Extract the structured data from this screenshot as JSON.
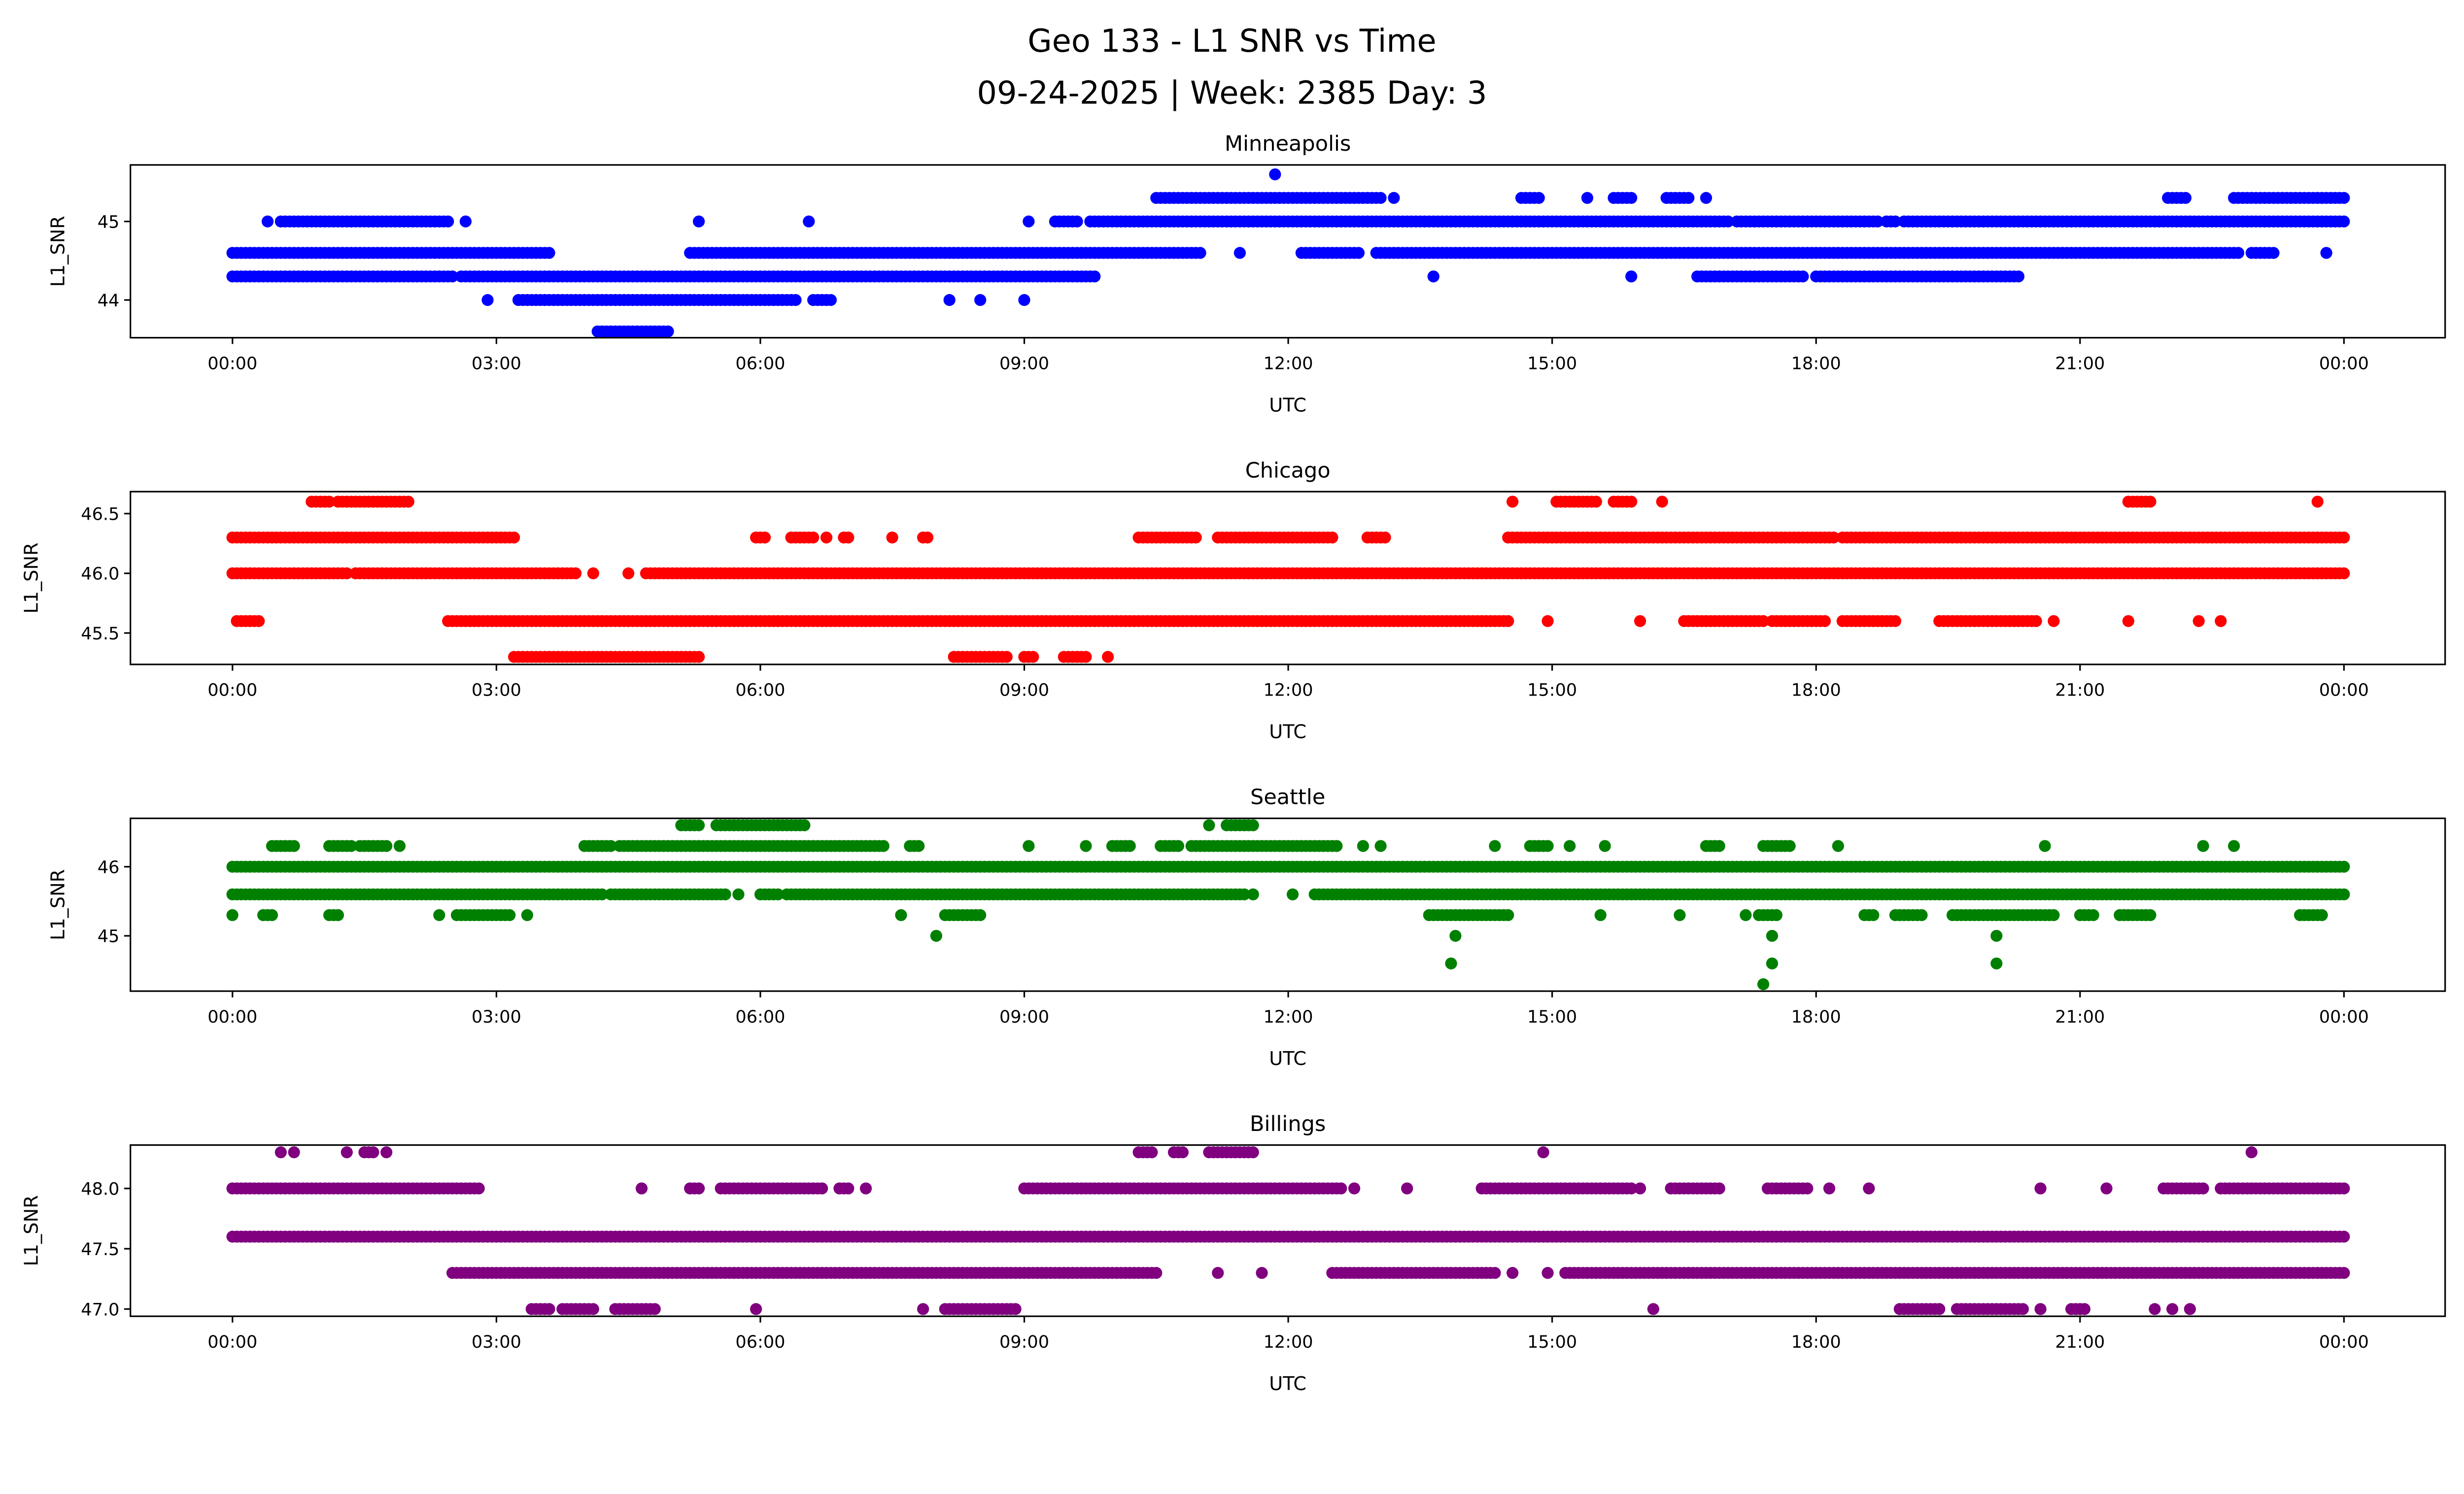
{
  "title_line1": "Geo 133 - L1 SNR vs Time",
  "title_line2": "09-24-2025 | Week: 2385 Day: 3",
  "chart_data": [
    {
      "type": "scatter",
      "title": "Minneapolis",
      "xlabel": "UTC",
      "ylabel": "L1_SNR",
      "color": "#0000ff",
      "xlim_hours": [
        -1.16,
        25.15
      ],
      "ylim": [
        43.52,
        45.72
      ],
      "xticks": [
        "00:00",
        "03:00",
        "06:00",
        "09:00",
        "12:00",
        "15:00",
        "18:00",
        "21:00",
        "00:00"
      ],
      "yticks": [
        {
          "v": 44,
          "label": "44"
        },
        {
          "v": 45,
          "label": "45"
        }
      ],
      "levels": [
        {
          "y": 45.6,
          "ranges": [
            [
              11.85,
              11.85
            ]
          ]
        },
        {
          "y": 45.3,
          "ranges": [
            [
              10.5,
              13.05
            ],
            [
              13.2,
              13.2
            ],
            [
              14.65,
              14.85
            ],
            [
              15.4,
              15.4
            ],
            [
              15.7,
              15.9
            ],
            [
              16.3,
              16.55
            ],
            [
              16.75,
              16.75
            ],
            [
              22.0,
              22.2
            ],
            [
              22.75,
              24.0
            ]
          ]
        },
        {
          "y": 45.0,
          "ranges": [
            [
              0.4,
              0.4
            ],
            [
              0.55,
              2.45
            ],
            [
              2.65,
              2.65
            ],
            [
              5.3,
              5.3
            ],
            [
              6.55,
              6.55
            ],
            [
              9.05,
              9.05
            ],
            [
              9.35,
              9.6
            ],
            [
              9.75,
              17.0
            ],
            [
              17.1,
              18.7
            ],
            [
              18.8,
              18.9
            ],
            [
              19.0,
              24.0
            ]
          ]
        },
        {
          "y": 44.6,
          "ranges": [
            [
              0,
              3.6
            ],
            [
              5.2,
              11.0
            ],
            [
              11.45,
              11.45
            ],
            [
              12.15,
              12.8
            ],
            [
              13.0,
              22.8
            ],
            [
              22.95,
              23.2
            ],
            [
              23.8,
              23.8
            ]
          ]
        },
        {
          "y": 44.3,
          "ranges": [
            [
              0,
              2.5
            ],
            [
              2.6,
              9.8
            ],
            [
              13.65,
              13.65
            ],
            [
              15.9,
              15.9
            ],
            [
              16.65,
              17.85
            ],
            [
              18.0,
              20.3
            ]
          ]
        },
        {
          "y": 44.0,
          "ranges": [
            [
              2.9,
              2.9
            ],
            [
              3.25,
              6.4
            ],
            [
              6.6,
              6.8
            ],
            [
              8.15,
              8.15
            ],
            [
              8.5,
              8.5
            ],
            [
              9.0,
              9.0
            ]
          ]
        },
        {
          "y": 43.6,
          "ranges": [
            [
              4.15,
              4.95
            ]
          ]
        }
      ]
    },
    {
      "type": "scatter",
      "title": "Chicago",
      "xlabel": "UTC",
      "ylabel": "L1_SNR",
      "color": "#ff0000",
      "xlim_hours": [
        -1.16,
        25.15
      ],
      "ylim": [
        45.237,
        46.684
      ],
      "xticks": [
        "00:00",
        "03:00",
        "06:00",
        "09:00",
        "12:00",
        "15:00",
        "18:00",
        "21:00",
        "00:00"
      ],
      "yticks": [
        {
          "v": 45.5,
          "label": "45.5"
        },
        {
          "v": 46.0,
          "label": "46.0"
        },
        {
          "v": 46.5,
          "label": "46.5"
        }
      ],
      "levels": [
        {
          "y": 46.6,
          "ranges": [
            [
              0.9,
              1.1
            ],
            [
              1.2,
              2.0
            ],
            [
              14.55,
              14.55
            ],
            [
              15.05,
              15.5
            ],
            [
              15.7,
              15.9
            ],
            [
              16.25,
              16.25
            ],
            [
              21.55,
              21.8
            ],
            [
              23.7,
              23.7
            ]
          ]
        },
        {
          "y": 46.3,
          "ranges": [
            [
              0,
              3.2
            ],
            [
              5.95,
              6.05
            ],
            [
              6.35,
              6.6
            ],
            [
              6.75,
              6.75
            ],
            [
              6.95,
              7.0
            ],
            [
              7.5,
              7.5
            ],
            [
              7.85,
              7.9
            ],
            [
              10.3,
              10.95
            ],
            [
              11.2,
              12.5
            ],
            [
              12.9,
              13.1
            ],
            [
              14.5,
              18.2
            ],
            [
              18.3,
              24.0
            ]
          ]
        },
        {
          "y": 46.0,
          "ranges": [
            [
              0,
              1.3
            ],
            [
              1.4,
              3.9
            ],
            [
              4.1,
              4.1
            ],
            [
              4.5,
              4.5
            ],
            [
              4.7,
              24.0
            ]
          ]
        },
        {
          "y": 45.6,
          "ranges": [
            [
              0.05,
              0.3
            ],
            [
              2.45,
              14.5
            ],
            [
              14.95,
              14.95
            ],
            [
              16.0,
              16.0
            ],
            [
              16.5,
              17.4
            ],
            [
              17.5,
              18.1
            ],
            [
              18.3,
              18.9
            ],
            [
              19.4,
              20.5
            ],
            [
              20.7,
              20.7
            ],
            [
              21.55,
              21.55
            ],
            [
              22.35,
              22.35
            ],
            [
              22.6,
              22.6
            ]
          ]
        },
        {
          "y": 45.3,
          "ranges": [
            [
              3.2,
              5.3
            ],
            [
              8.2,
              8.8
            ],
            [
              9.0,
              9.1
            ],
            [
              9.45,
              9.7
            ],
            [
              9.95,
              9.95
            ]
          ]
        }
      ]
    },
    {
      "type": "scatter",
      "title": "Seattle",
      "xlabel": "UTC",
      "ylabel": "L1_SNR",
      "color": "#008000",
      "xlim_hours": [
        -1.16,
        25.15
      ],
      "ylim": [
        44.2,
        46.7
      ],
      "xticks": [
        "00:00",
        "03:00",
        "06:00",
        "09:00",
        "12:00",
        "15:00",
        "18:00",
        "21:00",
        "00:00"
      ],
      "yticks": [
        {
          "v": 45,
          "label": "45"
        },
        {
          "v": 46,
          "label": "46"
        }
      ],
      "levels": [
        {
          "y": 46.6,
          "ranges": [
            [
              5.1,
              5.3
            ],
            [
              5.5,
              6.5
            ],
            [
              11.1,
              11.1
            ],
            [
              11.3,
              11.6
            ]
          ]
        },
        {
          "y": 46.3,
          "ranges": [
            [
              0.45,
              0.7
            ],
            [
              1.1,
              1.35
            ],
            [
              1.45,
              1.75
            ],
            [
              1.9,
              1.9
            ],
            [
              4.0,
              4.3
            ],
            [
              4.4,
              7.4
            ],
            [
              7.7,
              7.8
            ],
            [
              9.05,
              9.05
            ],
            [
              9.7,
              9.7
            ],
            [
              10.0,
              10.2
            ],
            [
              10.55,
              10.75
            ],
            [
              10.9,
              12.55
            ],
            [
              12.85,
              12.85
            ],
            [
              13.05,
              13.05
            ],
            [
              14.35,
              14.35
            ],
            [
              14.75,
              14.95
            ],
            [
              15.2,
              15.2
            ],
            [
              15.6,
              15.6
            ],
            [
              16.75,
              16.9
            ],
            [
              17.4,
              17.7
            ],
            [
              18.25,
              18.25
            ],
            [
              20.6,
              20.6
            ],
            [
              22.4,
              22.4
            ],
            [
              22.75,
              22.75
            ]
          ]
        },
        {
          "y": 46.0,
          "ranges": [
            [
              0,
              24.0
            ]
          ]
        },
        {
          "y": 45.6,
          "ranges": [
            [
              0,
              4.2
            ],
            [
              4.3,
              5.6
            ],
            [
              5.75,
              5.75
            ],
            [
              6.0,
              6.2
            ],
            [
              6.3,
              11.5
            ],
            [
              11.6,
              11.6
            ],
            [
              12.05,
              12.05
            ],
            [
              12.3,
              24.0
            ]
          ]
        },
        {
          "y": 45.3,
          "ranges": [
            [
              0,
              0
            ],
            [
              0.35,
              0.45
            ],
            [
              1.1,
              1.2
            ],
            [
              2.35,
              2.35
            ],
            [
              2.55,
              3.15
            ],
            [
              3.35,
              3.35
            ],
            [
              7.6,
              7.6
            ],
            [
              8.1,
              8.5
            ],
            [
              13.6,
              14.5
            ],
            [
              15.55,
              15.55
            ],
            [
              16.45,
              16.45
            ],
            [
              17.2,
              17.2
            ],
            [
              17.35,
              17.55
            ],
            [
              18.55,
              18.65
            ],
            [
              18.9,
              19.2
            ],
            [
              19.55,
              20.7
            ],
            [
              21.0,
              21.15
            ],
            [
              21.45,
              21.8
            ],
            [
              23.5,
              23.75
            ]
          ]
        },
        {
          "y": 45.0,
          "ranges": [
            [
              8.0,
              8.0
            ],
            [
              13.9,
              13.9
            ],
            [
              17.5,
              17.5
            ],
            [
              20.05,
              20.05
            ]
          ]
        },
        {
          "y": 44.6,
          "ranges": [
            [
              13.85,
              13.85
            ],
            [
              17.5,
              17.5
            ],
            [
              20.05,
              20.05
            ]
          ]
        },
        {
          "y": 44.3,
          "ranges": [
            [
              17.4,
              17.4
            ]
          ]
        }
      ]
    },
    {
      "type": "scatter",
      "title": "Billings",
      "xlabel": "UTC",
      "ylabel": "L1_SNR",
      "color": "#800080",
      "xlim_hours": [
        -1.16,
        25.15
      ],
      "ylim": [
        46.94,
        48.36
      ],
      "xticks": [
        "00:00",
        "03:00",
        "06:00",
        "09:00",
        "12:00",
        "15:00",
        "18:00",
        "21:00",
        "00:00"
      ],
      "yticks": [
        {
          "v": 47.0,
          "label": "47.0"
        },
        {
          "v": 47.5,
          "label": "47.5"
        },
        {
          "v": 48.0,
          "label": "48.0"
        }
      ],
      "levels": [
        {
          "y": 48.3,
          "ranges": [
            [
              0.55,
              0.55
            ],
            [
              0.7,
              0.7
            ],
            [
              1.3,
              1.3
            ],
            [
              1.5,
              1.6
            ],
            [
              1.75,
              1.75
            ],
            [
              10.3,
              10.45
            ],
            [
              10.7,
              10.8
            ],
            [
              11.1,
              11.6
            ],
            [
              14.9,
              14.9
            ],
            [
              22.95,
              22.95
            ]
          ]
        },
        {
          "y": 48.0,
          "ranges": [
            [
              0,
              2.8
            ],
            [
              4.65,
              4.65
            ],
            [
              5.2,
              5.3
            ],
            [
              5.55,
              6.7
            ],
            [
              6.9,
              7.0
            ],
            [
              7.2,
              7.2
            ],
            [
              9.0,
              12.6
            ],
            [
              12.75,
              12.75
            ],
            [
              13.35,
              13.35
            ],
            [
              14.2,
              15.9
            ],
            [
              16.0,
              16.0
            ],
            [
              16.35,
              16.9
            ],
            [
              17.45,
              17.9
            ],
            [
              18.15,
              18.15
            ],
            [
              18.6,
              18.6
            ],
            [
              20.55,
              20.55
            ],
            [
              21.3,
              21.3
            ],
            [
              21.95,
              22.4
            ],
            [
              22.6,
              24.0
            ]
          ]
        },
        {
          "y": 47.6,
          "ranges": [
            [
              0,
              3.9
            ],
            [
              3.95,
              24.0
            ]
          ]
        },
        {
          "y": 47.3,
          "ranges": [
            [
              2.5,
              10.5
            ],
            [
              11.2,
              11.2
            ],
            [
              11.7,
              11.7
            ],
            [
              12.5,
              14.35
            ],
            [
              14.55,
              14.55
            ],
            [
              14.95,
              14.95
            ],
            [
              15.15,
              24.0
            ]
          ]
        },
        {
          "y": 47.0,
          "ranges": [
            [
              3.4,
              3.6
            ],
            [
              3.75,
              4.1
            ],
            [
              4.35,
              4.8
            ],
            [
              5.95,
              5.95
            ],
            [
              7.85,
              7.85
            ],
            [
              8.1,
              8.9
            ],
            [
              16.15,
              16.15
            ],
            [
              18.95,
              19.4
            ],
            [
              19.6,
              20.35
            ],
            [
              20.55,
              20.55
            ],
            [
              20.9,
              21.05
            ],
            [
              21.85,
              21.85
            ],
            [
              22.05,
              22.05
            ],
            [
              22.25,
              22.25
            ]
          ]
        }
      ]
    }
  ]
}
